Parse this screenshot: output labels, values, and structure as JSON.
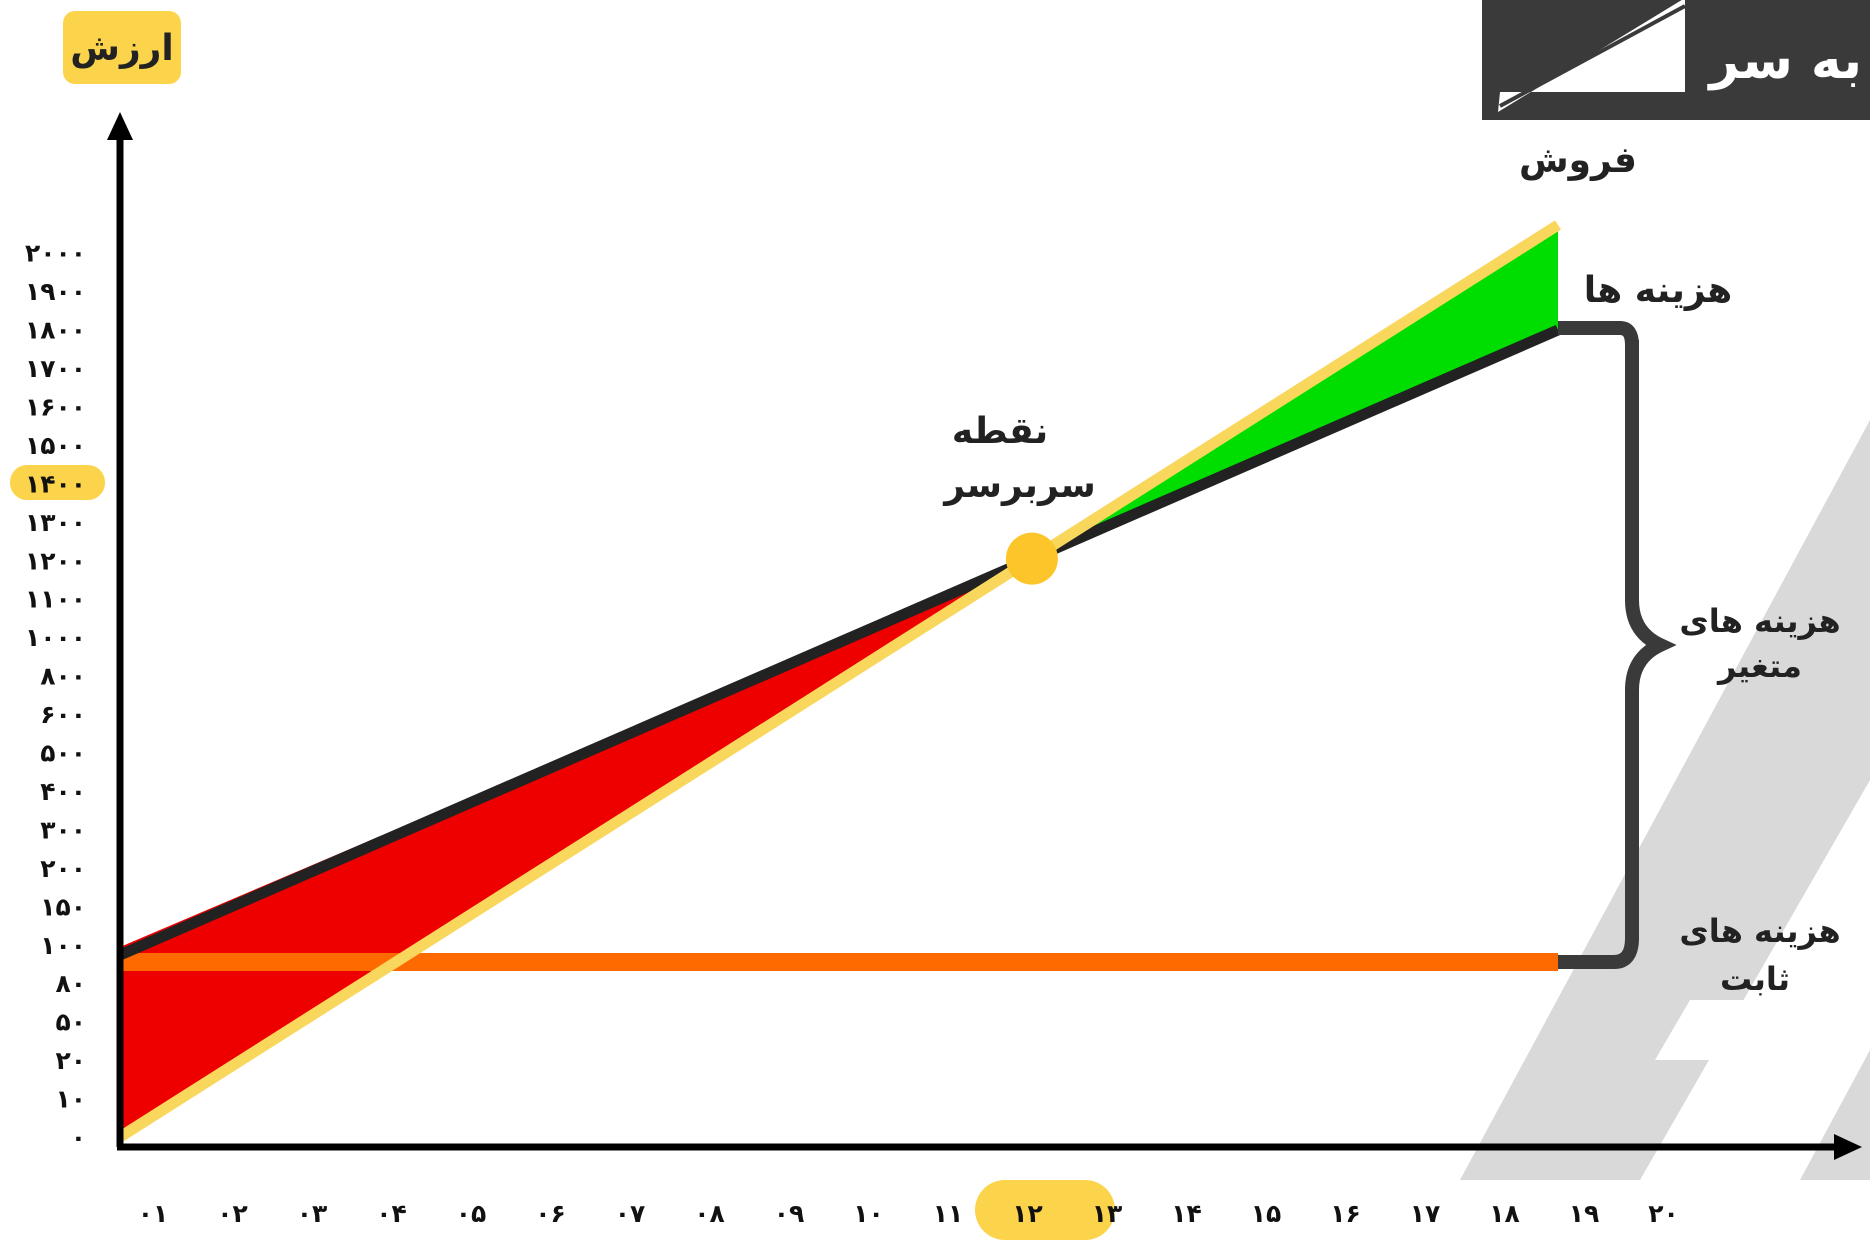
{
  "header": {
    "title": "به سر"
  },
  "y_axis": {
    "label": "ارزش"
  },
  "colors": {
    "sales": "#f9d65c",
    "costs": "#222222",
    "fixed": "#ff6a00",
    "loss": "#ee0000",
    "profit": "#00dd00",
    "highlight": "#fcd44c",
    "brace": "#3a3a3a",
    "decor": "#d9d9d9",
    "header_bg": "#3a3a3a"
  },
  "annotations": {
    "sales": "فروش",
    "costs": "هزینه ها",
    "break_even": [
      "نقطه",
      "سربرسر"
    ],
    "variable_costs": [
      "هزینه های",
      "متغیر"
    ],
    "fixed_costs": [
      "هزینه های",
      "ثابت"
    ]
  },
  "chart_data": {
    "type": "line",
    "x": [
      "۰۱",
      "۰۲",
      "۰۳",
      "۰۴",
      "۰۵",
      "۰۶",
      "۰۷",
      "۰۸",
      "۰۹",
      "۱۰",
      "۱۱",
      "۱۲",
      "۱۳",
      "۱۴",
      "۱۵",
      "۱۶",
      "۱۷",
      "۱۸",
      "۱۹",
      "۲۰"
    ],
    "y_ticks": [
      "۰",
      "۱۰",
      "۲۰",
      "۵۰",
      "۸۰",
      "۱۰۰",
      "۱۵۰",
      "۲۰۰",
      "۳۰۰",
      "۴۰۰",
      "۵۰۰",
      "۶۰۰",
      "۸۰۰",
      "۱۰۰۰",
      "۱۱۰۰",
      "۱۲۰۰",
      "۱۳۰۰",
      "۱۴۰۰",
      "۱۵۰۰",
      "۱۶۰۰",
      "۱۷۰۰",
      "۱۸۰۰",
      "۱۹۰۰",
      "۲۰۰۰"
    ],
    "highlight_x": [
      "۱۲",
      "۱۳"
    ],
    "highlight_y": "۱۴۰۰",
    "series": [
      {
        "name": "فروش",
        "x_range": [
          "۰۱",
          "۱۹"
        ],
        "y_range": [
          "۰",
          "۲۰۰۰"
        ]
      },
      {
        "name": "هزینه ها",
        "x_range": [
          "۰۱",
          "۱۹"
        ],
        "y_range": [
          "۱۰۰",
          "۱۸۰۰"
        ]
      },
      {
        "name": "هزینه های ثابت",
        "x_range": [
          "۰۱",
          "۱۹"
        ],
        "y_range": [
          "۱۰۰",
          "۱۰۰"
        ]
      }
    ],
    "break_even": {
      "x": "۱۲",
      "y": "۱۲۰۰"
    }
  }
}
